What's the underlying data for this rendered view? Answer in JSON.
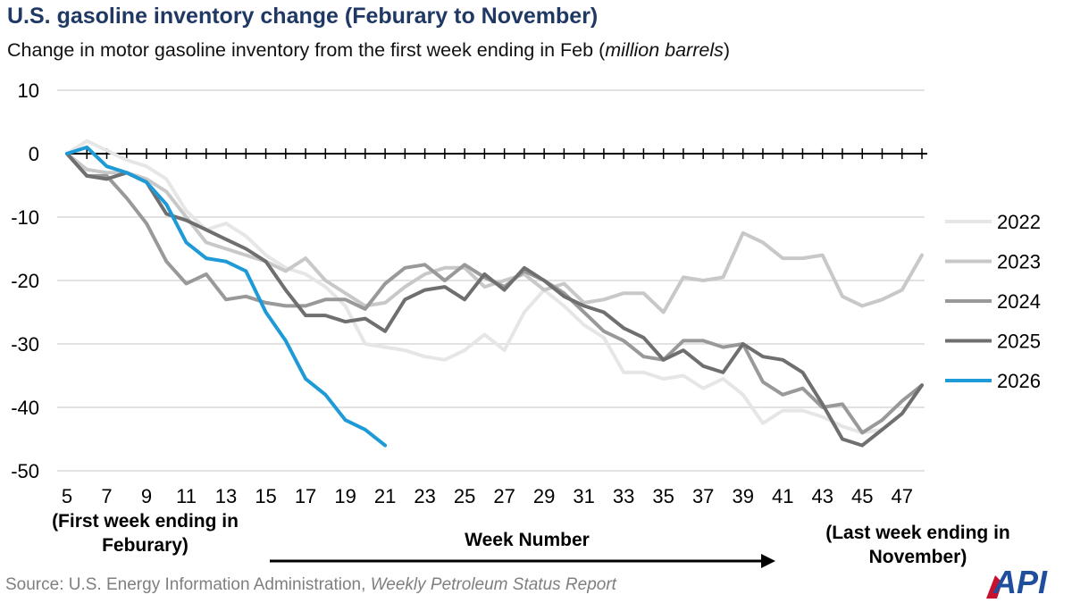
{
  "header": {
    "title": "U.S. gasoline inventory change (Feburary to November)",
    "subtitle_main": "Change in motor gasoline inventory from the first week ending in Feb (",
    "subtitle_unit": "million barrels",
    "subtitle_end": ")"
  },
  "notes": {
    "first_week": "(First week ending in Feburary)",
    "week_number": "Week Number",
    "last_week": "(Last week ending in November)"
  },
  "source": {
    "prefix": "Source: U.S. Energy Information Administration, ",
    "report": "Weekly Petroleum Status Report"
  },
  "logo": {
    "text": "API",
    "colors": {
      "blue": "#1f4e9c",
      "red": "#c8102e"
    }
  },
  "chart_data": {
    "type": "line",
    "title": "U.S. gasoline inventory change (Feburary to November)",
    "ylabel": "",
    "xlabel": "Week Number",
    "xlim": [
      5,
      48
    ],
    "ylim": [
      -50,
      10
    ],
    "xticks": [
      5,
      7,
      9,
      11,
      13,
      15,
      17,
      19,
      21,
      23,
      25,
      27,
      29,
      31,
      33,
      35,
      37,
      39,
      41,
      43,
      45,
      47
    ],
    "yticks": [
      10,
      0,
      -10,
      -20,
      -30,
      -40,
      -50
    ],
    "grid": true,
    "legend_position": "right",
    "series": [
      {
        "name": "2022",
        "color": "#e6e6e6",
        "x": [
          5,
          6,
          7,
          8,
          9,
          10,
          11,
          12,
          13,
          14,
          15,
          16,
          17,
          18,
          19,
          20,
          21,
          22,
          23,
          24,
          25,
          26,
          27,
          28,
          29,
          30,
          31,
          32,
          33,
          34,
          35,
          36,
          37,
          38,
          39,
          40,
          41,
          42,
          43,
          44,
          45,
          46
        ],
        "values": [
          0,
          2,
          0.5,
          -1,
          -2,
          -4,
          -9,
          -12,
          -11,
          -13,
          -16,
          -18,
          -19,
          -21,
          -24,
          -30,
          -30.5,
          -31,
          -32,
          -32.5,
          -31,
          -28.5,
          -31,
          -25,
          -21.5,
          -24,
          -27,
          -29,
          -34.5,
          -34.5,
          -35.5,
          -35,
          -37,
          -35.5,
          -38,
          -42.5,
          -40.5,
          -40.5,
          -41.5,
          -43,
          -44,
          -43.5
        ]
      },
      {
        "name": "2023",
        "color": "#c8c8c8",
        "x": [
          5,
          6,
          7,
          8,
          9,
          10,
          11,
          12,
          13,
          14,
          15,
          16,
          17,
          18,
          19,
          20,
          21,
          22,
          23,
          24,
          25,
          26,
          27,
          28,
          29,
          30,
          31,
          32,
          33,
          34,
          35,
          36,
          37,
          38,
          39,
          40,
          41,
          42,
          43,
          44,
          45,
          46,
          47,
          48
        ],
        "values": [
          0,
          -2.5,
          -3,
          -3,
          -4,
          -6,
          -10,
          -14,
          -15,
          -16,
          -17,
          -18.5,
          -16.5,
          -20,
          -22,
          -24,
          -23.5,
          -21,
          -19,
          -18,
          -18,
          -21,
          -20,
          -19,
          -21.5,
          -20.5,
          -23.5,
          -23,
          -22,
          -22,
          -25,
          -19.5,
          -20,
          -19.5,
          -12.5,
          -14,
          -16.5,
          -16.5,
          -16,
          -22.5,
          -24,
          -23,
          -21.5,
          -16
        ]
      },
      {
        "name": "2024",
        "color": "#999999",
        "x": [
          5,
          6,
          7,
          8,
          9,
          10,
          11,
          12,
          13,
          14,
          15,
          16,
          17,
          18,
          19,
          20,
          21,
          22,
          23,
          24,
          25,
          26,
          27,
          28,
          29,
          30,
          31,
          32,
          33,
          34,
          35,
          36,
          37,
          38,
          39,
          40,
          41,
          42,
          43,
          44,
          45,
          46,
          47,
          48
        ],
        "values": [
          0,
          -3.5,
          -3.5,
          -7,
          -11,
          -17,
          -20.5,
          -19,
          -23,
          -22.5,
          -23.5,
          -24,
          -24,
          -23,
          -23,
          -24.5,
          -20.5,
          -18,
          -17.5,
          -20,
          -17.5,
          -19.5,
          -21,
          -18.5,
          -20,
          -22,
          -25,
          -28,
          -29.5,
          -32,
          -32.5,
          -29.5,
          -29.5,
          -30.5,
          -30,
          -36,
          -38,
          -37,
          -40,
          -39.5,
          -44,
          -42,
          -39,
          -36.5
        ]
      },
      {
        "name": "2025",
        "color": "#6f6f6f",
        "x": [
          5,
          6,
          7,
          8,
          9,
          10,
          11,
          12,
          13,
          14,
          15,
          16,
          17,
          18,
          19,
          20,
          21,
          22,
          23,
          24,
          25,
          26,
          27,
          28,
          29,
          30,
          31,
          32,
          33,
          34,
          35,
          36,
          37,
          38,
          39,
          40,
          41,
          42,
          43,
          44,
          45,
          46,
          47,
          48
        ],
        "values": [
          0,
          -3.5,
          -4,
          -3,
          -4.5,
          -9.5,
          -10.5,
          -12,
          -13.5,
          -15,
          -17,
          -21.5,
          -25.5,
          -25.5,
          -26.5,
          -26,
          -28,
          -23,
          -21.5,
          -21,
          -23,
          -19,
          -21.5,
          -18,
          -20,
          -22.5,
          -24,
          -25,
          -27.5,
          -29,
          -32.5,
          -31,
          -33.5,
          -34.5,
          -30,
          -32,
          -32.5,
          -34.5,
          -39.5,
          -45,
          -46,
          -43.5,
          -41,
          -36.5
        ]
      },
      {
        "name": "2026",
        "color": "#1e9ad6",
        "x": [
          5,
          6,
          7,
          8,
          9,
          10,
          11,
          12,
          13,
          14,
          15,
          16,
          17,
          18,
          19,
          20,
          21
        ],
        "values": [
          0,
          1,
          -2,
          -3,
          -4.5,
          -8,
          -14,
          -16.5,
          -17,
          -18.5,
          -25,
          -29.5,
          -35.5,
          -38,
          -42,
          -43.5,
          -46
        ]
      }
    ]
  }
}
